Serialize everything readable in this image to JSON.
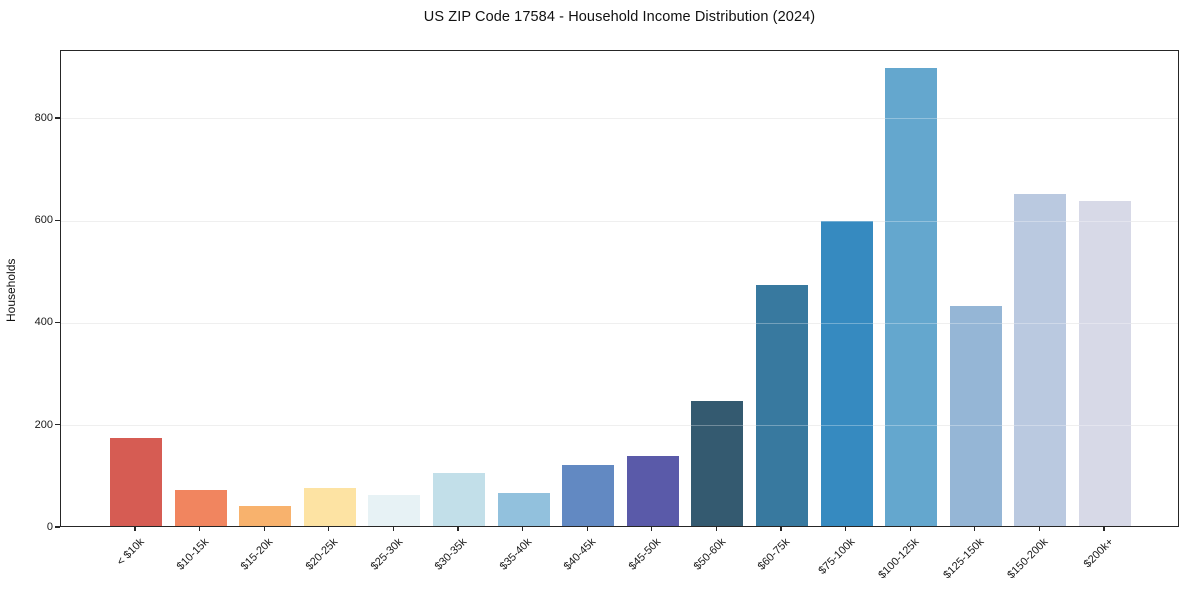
{
  "figure": {
    "background": "#ffffff",
    "title": "US ZIP Code 17584 - Household Income Distribution (2024)"
  },
  "chart_data": {
    "type": "bar",
    "title": "US ZIP Code 17584 - Household Income Distribution (2024)",
    "xlabel": "",
    "ylabel": "Households",
    "categories": [
      "< $10k",
      "$10-15k",
      "$15-20k",
      "$20-25k",
      "$25-30k",
      "$30-35k",
      "$35-40k",
      "$40-45k",
      "$45-50k",
      "$50-60k",
      "$60-75k",
      "$75-100k",
      "$100-125k",
      "$125-150k",
      "$150-200k",
      "$200k+"
    ],
    "values": [
      172,
      70,
      40,
      74,
      60,
      104,
      64,
      120,
      137,
      244,
      472,
      596,
      896,
      431,
      650,
      636
    ],
    "bar_colors": [
      "#d65c53",
      "#f1855f",
      "#f8b26d",
      "#fde3a3",
      "#e7f2f5",
      "#c2dfe9",
      "#92c1dd",
      "#6289c2",
      "#5a5aa9",
      "#345a70",
      "#38799f",
      "#368ac0",
      "#64a7ce",
      "#95b6d6",
      "#bac9e0",
      "#d7d9e7"
    ],
    "yticks": [
      0,
      200,
      400,
      600,
      800
    ],
    "ylim": [
      0,
      933
    ],
    "grid": "horizontal",
    "gridline_color": "#e8e8e8",
    "spine_color": "#262626",
    "tick_label_color": "#1a1a1a",
    "legend": "none",
    "x_tick_rotation_deg": 45
  }
}
